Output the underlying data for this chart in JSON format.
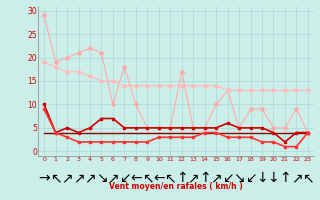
{
  "xlabel": "Vent moyen/en rafales ( km/h )",
  "bg_color": "#cceee8",
  "grid_color": "#aadddd",
  "text_color": "#cc0000",
  "xlim": [
    -0.5,
    23.5
  ],
  "ylim": [
    -1,
    31
  ],
  "yticks": [
    0,
    5,
    10,
    15,
    20,
    25,
    30
  ],
  "xticks": [
    0,
    1,
    2,
    3,
    4,
    5,
    6,
    7,
    8,
    9,
    10,
    11,
    12,
    13,
    14,
    15,
    16,
    17,
    18,
    19,
    20,
    21,
    22,
    23
  ],
  "series": [
    {
      "x": [
        0,
        1,
        2,
        3,
        4,
        5,
        6,
        7,
        8,
        9,
        10,
        11,
        12,
        13,
        14,
        15,
        16,
        17,
        18,
        19,
        20,
        21,
        22,
        23
      ],
      "y": [
        29,
        19,
        20,
        21,
        22,
        21,
        10,
        18,
        10,
        5,
        5,
        5,
        17,
        5,
        5,
        10,
        13,
        5,
        9,
        9,
        5,
        5,
        9,
        4
      ],
      "color": "#ffaaaa",
      "lw": 0.8,
      "marker": "D",
      "ms": 2.0
    },
    {
      "x": [
        0,
        1,
        2,
        3,
        4,
        5,
        6,
        7,
        8,
        9,
        10,
        11,
        12,
        13,
        14,
        15,
        16,
        17,
        18,
        19,
        20,
        21,
        22,
        23
      ],
      "y": [
        19,
        18,
        17,
        17,
        16,
        15,
        15,
        14,
        14,
        14,
        14,
        14,
        14,
        14,
        14,
        14,
        13,
        13,
        13,
        13,
        13,
        13,
        13,
        13
      ],
      "color": "#ffbbbb",
      "lw": 0.8,
      "marker": "D",
      "ms": 2.0
    },
    {
      "x": [
        0,
        1,
        2,
        3,
        4,
        5,
        6,
        7,
        8,
        9,
        10,
        11,
        12,
        13,
        14,
        15,
        16,
        17,
        18,
        19,
        20,
        21,
        22,
        23
      ],
      "y": [
        10,
        4,
        5,
        4,
        5,
        7,
        7,
        5,
        5,
        5,
        5,
        5,
        5,
        5,
        5,
        5,
        6,
        5,
        5,
        5,
        4,
        2,
        4,
        4
      ],
      "color": "#cc0000",
      "lw": 1.2,
      "marker": "s",
      "ms": 1.8
    },
    {
      "x": [
        0,
        1,
        2,
        3,
        4,
        5,
        6,
        7,
        8,
        9,
        10,
        11,
        12,
        13,
        14,
        15,
        16,
        17,
        18,
        19,
        20,
        21,
        22,
        23
      ],
      "y": [
        9,
        4,
        3,
        2,
        2,
        2,
        2,
        2,
        2,
        2,
        3,
        3,
        3,
        3,
        4,
        4,
        3,
        3,
        3,
        2,
        2,
        1,
        1,
        4
      ],
      "color": "#ff3333",
      "lw": 1.2,
      "marker": "s",
      "ms": 1.8
    },
    {
      "x": [
        0,
        1,
        2,
        3,
        4,
        5,
        6,
        7,
        8,
        9,
        10,
        11,
        12,
        13,
        14,
        15,
        16,
        17,
        18,
        19,
        20,
        21,
        22,
        23
      ],
      "y": [
        4,
        4,
        4,
        4,
        4,
        4,
        4,
        4,
        4,
        4,
        4,
        4,
        4,
        4,
        4,
        4,
        4,
        4,
        4,
        4,
        4,
        4,
        4,
        4
      ],
      "color": "#880000",
      "lw": 1.0,
      "marker": null,
      "ms": 0
    }
  ],
  "arrow_symbols": [
    "→",
    "↖",
    "↗",
    "↗",
    "↗",
    "↘",
    "↗",
    "↙",
    "←",
    "↖",
    "←",
    "↖",
    "↑",
    "↗",
    "↑",
    "↗",
    "↙",
    "↘",
    "↙",
    "↓",
    "↓",
    "↑",
    "↗",
    "↖"
  ]
}
